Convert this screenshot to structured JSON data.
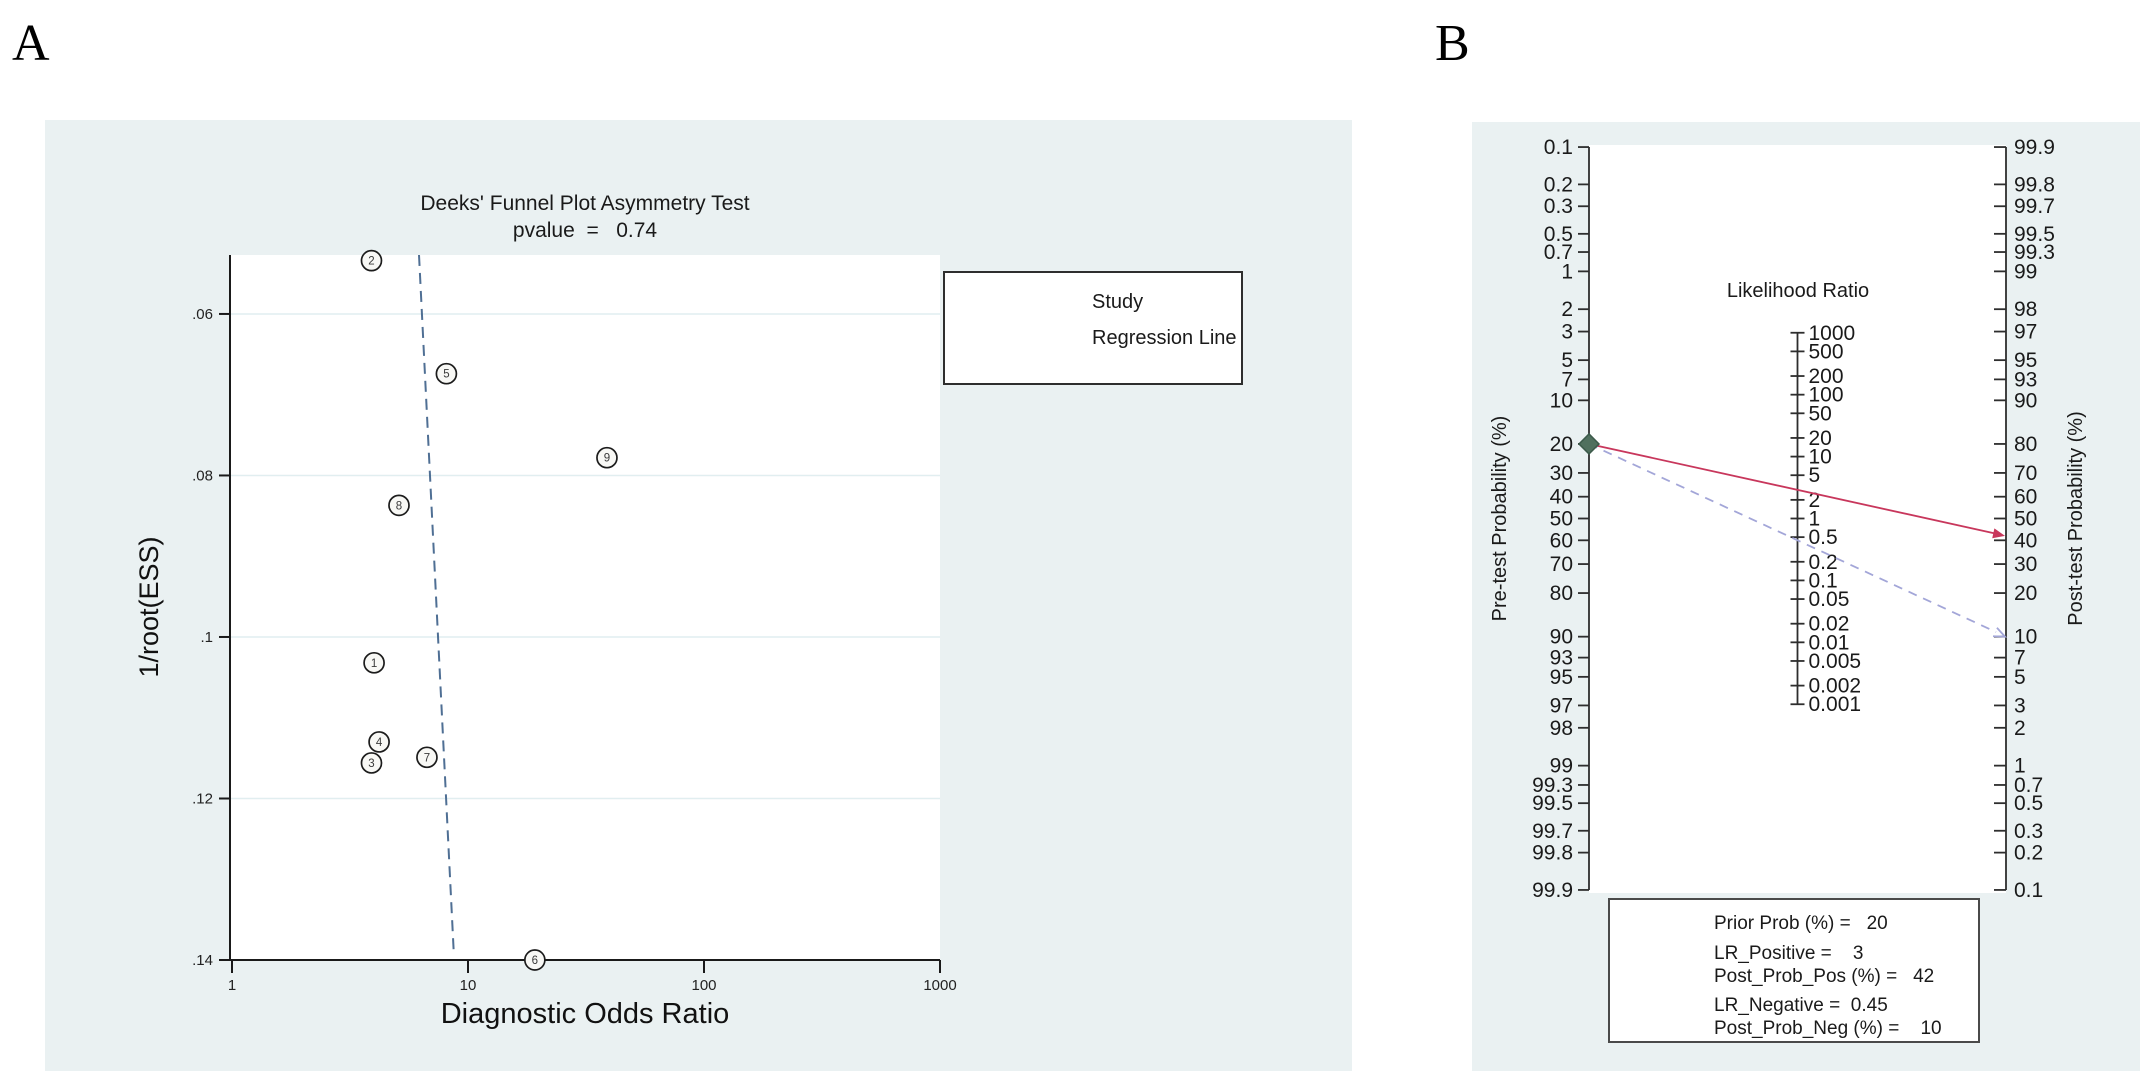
{
  "page": {
    "panel_a_label": "A",
    "panel_b_label": "B",
    "background": "#ffffff",
    "panel_background": "#eaf1f2"
  },
  "chart_data": [
    {
      "id": "deeks-funnel",
      "type": "scatter",
      "title": "Deeks' Funnel Plot Asymmetry Test",
      "subtitle": "pvalue  =   0.74",
      "xlabel": "Diagnostic Odds Ratio",
      "ylabel": "1/root(ESS)",
      "x_scale": "log10",
      "xlim": [
        1,
        1000
      ],
      "ylim": [
        0.0527,
        0.14
      ],
      "y_axis_inverted_note": "y increases downward",
      "x_ticks": [
        {
          "v": 1,
          "t": "1"
        },
        {
          "v": 10,
          "t": "10"
        },
        {
          "v": 100,
          "t": "100"
        },
        {
          "v": 1000,
          "t": "1000"
        }
      ],
      "y_ticks": [
        {
          "v": 0.06,
          "t": ".06"
        },
        {
          "v": 0.08,
          "t": ".08"
        },
        {
          "v": 0.1,
          "t": ".1"
        },
        {
          "v": 0.12,
          "t": ".12"
        },
        {
          "v": 0.14,
          "t": ".14"
        }
      ],
      "grid": "horizontal",
      "points": [
        {
          "label": "1",
          "dor": 4.0,
          "inv_root_ess": 0.1032
        },
        {
          "label": "2",
          "dor": 3.9,
          "inv_root_ess": 0.0534
        },
        {
          "label": "3",
          "dor": 3.9,
          "inv_root_ess": 0.1156
        },
        {
          "label": "4",
          "dor": 4.2,
          "inv_root_ess": 0.113
        },
        {
          "label": "5",
          "dor": 8.1,
          "inv_root_ess": 0.0674
        },
        {
          "label": "6",
          "dor": 19.2,
          "inv_root_ess": 0.14
        },
        {
          "label": "7",
          "dor": 6.7,
          "inv_root_ess": 0.1149
        },
        {
          "label": "8",
          "dor": 5.1,
          "inv_root_ess": 0.0837
        },
        {
          "label": "9",
          "dor": 38.8,
          "inv_root_ess": 0.0778
        }
      ],
      "regression_line": {
        "dor_top": 6.2,
        "ess_top": 0.0527,
        "dor_bottom": 8.7,
        "ess_bottom": 0.139
      },
      "legend": {
        "study_label": "Study",
        "regression_label": "Regression Line"
      },
      "colors": {
        "regression_line": "#4f6f94",
        "legend_dash": "#8ba3c2",
        "marker_fill": "#f8f8f5",
        "marker_stroke": "#1c1c1c",
        "gridline": "#e1eef0",
        "axis": "#1a1a1a"
      }
    },
    {
      "id": "fagan-nomogram",
      "type": "line",
      "center_axis_title": "Likelihood Ratio",
      "left_axis_label": "Pre-test Probability (%)",
      "right_axis_label": "Post-test Probability (%)",
      "probability_scale": "logit",
      "pretest_ticks": [
        "0.1",
        "0.2",
        "0.3",
        "0.5",
        "0.7",
        "1",
        "2",
        "3",
        "5",
        "7",
        "10",
        "20",
        "30",
        "40",
        "50",
        "60",
        "70",
        "80",
        "90",
        "93",
        "95",
        "97",
        "98",
        "99",
        "99.3",
        "99.5",
        "99.7",
        "99.8",
        "99.9"
      ],
      "posttest_ticks": [
        "99.9",
        "99.8",
        "99.7",
        "99.5",
        "99.3",
        "99",
        "98",
        "97",
        "95",
        "93",
        "90",
        "80",
        "70",
        "60",
        "50",
        "40",
        "30",
        "20",
        "10",
        "7",
        "5",
        "3",
        "2",
        "1",
        "0.7",
        "0.5",
        "0.3",
        "0.2",
        "0.1"
      ],
      "lr_ticks": [
        "1000",
        "500",
        "200",
        "100",
        "50",
        "20",
        "10",
        "5",
        "2",
        "1",
        "0.5",
        "0.2",
        "0.1",
        "0.05",
        "0.02",
        "0.01",
        "0.005",
        "0.002",
        "0.001"
      ],
      "prior_prob_pct": 20,
      "lr_positive": 3,
      "post_prob_pos_pct": 42,
      "lr_negative": 0.45,
      "post_prob_neg_pct": 10,
      "legend": {
        "prior_label": "Prior Prob (%) =   20",
        "lr_pos_line1": "LR_Positive =    3",
        "lr_pos_line2": "Post_Prob_Pos (%) =   42",
        "lr_neg_line1": "LR_Negative =  0.45",
        "lr_neg_line2": "Post_Prob_Neg (%) =    10"
      },
      "colors": {
        "positive_line": "#c8375c",
        "negative_line": "#a3a6d8",
        "prior_marker": "#50705e",
        "prior_marker_stroke": "#3c5a4a",
        "axis": "#2e2e2e"
      }
    }
  ]
}
